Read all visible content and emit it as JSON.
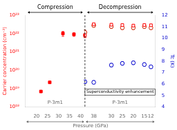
{
  "chart_data": [
    {
      "type": "scatter",
      "title": "Compression",
      "xlabel": "Pressure (GPa)",
      "ylabel": "Carrier concentration (cm⁻³)",
      "log": "y",
      "grid": false,
      "annotations": [
        "P-3m1"
      ],
      "xlim": [
        15,
        42
      ],
      "xticks": [
        20,
        25,
        30,
        35,
        40
      ],
      "ylim": [
        1e+18,
        1e+23
      ],
      "yticks": [
        {
          "value": 1e+18,
          "label": "10¹⁸"
        },
        {
          "value": 1e+19,
          "label": "10¹⁹"
        },
        {
          "value": 1e+20,
          "label": "10²⁰"
        },
        {
          "value": 1e+21,
          "label": "10²¹"
        },
        {
          "value": 1e+22,
          "label": "10²²"
        },
        {
          "value": 1e+23,
          "label": "10²³"
        }
      ],
      "series": [
        {
          "color": "red",
          "marker": "square",
          "axis": "y",
          "x": [
            22,
            26,
            32,
            37,
            42
          ],
          "values": [
            7e+18,
            2.2e+19,
            1e+22,
            9e+21,
            8e+21
          ],
          "errors": [
            8e+17,
            3e+18,
            3e+21,
            2e+21,
            2e+21
          ]
        }
      ]
    },
    {
      "type": "scatter",
      "title": "Decompression",
      "y2label": "Tc (K)",
      "grid": false,
      "annotations": [
        "Superconductivity enhancement",
        "P-3m1"
      ],
      "xlim": [
        42,
        10
      ],
      "xticks": [
        38,
        30,
        25,
        20,
        15,
        12
      ],
      "y2lim": [
        4,
        12
      ],
      "y2ticks": [
        4,
        5,
        6,
        7,
        8,
        9,
        10,
        11,
        12
      ],
      "series": [
        {
          "color": "red",
          "marker": "open_square",
          "axis": "y",
          "x": [
            42,
            38,
            30,
            25,
            20,
            15,
            12
          ],
          "values": [
            8e+21,
            3.2e+22,
            3e+22,
            2.9e+22,
            2.7e+22,
            2.9e+22,
            2.8e+22
          ],
          "errors": [
            2e+21,
            5e+21,
            5e+21,
            4e+21,
            4e+21,
            4e+21,
            4e+21
          ]
        },
        {
          "color": "#cc2200",
          "marker": "open_circle",
          "axis": "y2",
          "x": [
            42,
            38,
            30,
            25,
            20,
            15,
            12
          ],
          "values": [
            10.5,
            11.1,
            11.0,
            10.9,
            10.9,
            11.0,
            10.9
          ],
          "errors": [
            0.2,
            0.15,
            0.15,
            0.15,
            0.15,
            0.15,
            0.15
          ]
        },
        {
          "color": "#0000cc",
          "marker": "open_circle",
          "axis": "y2",
          "x": [
            42,
            38,
            30,
            25,
            20,
            15,
            12
          ],
          "values": [
            6.2,
            6.15,
            7.65,
            7.8,
            7.85,
            7.7,
            7.5
          ],
          "errors": [
            0.15,
            0.15,
            0.15,
            0.15,
            0.15,
            0.15,
            0.15
          ]
        }
      ]
    }
  ]
}
